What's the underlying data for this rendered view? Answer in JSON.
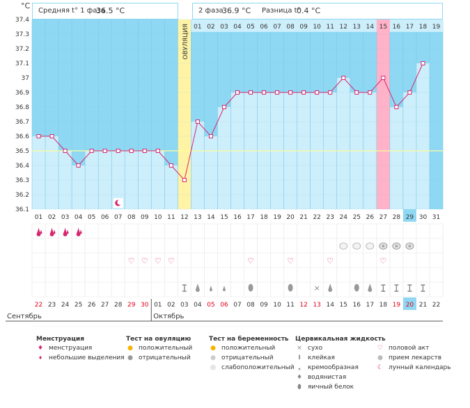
{
  "header": {
    "unit_label": "°C",
    "phase1_label": "Средняя t° 1 фаза",
    "phase1_value": "36.5 °C",
    "phase2_label": "2 фаза",
    "phase2_value": "36.9 °C",
    "diff_label": "Разница t°",
    "diff_value": "0.4 °C",
    "ovulation_label": "ОВУЛЯЦИЯ"
  },
  "colors": {
    "sky": "#8fd8f3",
    "bar": "#cdeefb",
    "grid": "#7cc7e5",
    "line": "#d6266f",
    "ovulation": "#fff3a6",
    "highlight": "#ffb2c8",
    "today": "#8fd8f3",
    "coverline": "#ffff99"
  },
  "chart_data": {
    "type": "line",
    "title": "Базальная температура",
    "ylabel": "°C",
    "ylim": [
      36.1,
      37.4
    ],
    "yticks": [
      "36.1",
      "36.2",
      "36.3",
      "36.4",
      "36.5",
      "36.6",
      "36.7",
      "36.8",
      "36.9",
      "37",
      "37.1",
      "37.2",
      "37.3",
      "37.4"
    ],
    "coverline": 36.5,
    "cycle_days": [
      "01",
      "02",
      "03",
      "04",
      "05",
      "06",
      "07",
      "08",
      "09",
      "10",
      "11",
      "12",
      "13",
      "14",
      "15",
      "16",
      "17",
      "18",
      "19",
      "20",
      "21",
      "22",
      "23",
      "24",
      "25",
      "26",
      "27",
      "28",
      "29",
      "30",
      "31"
    ],
    "temperatures": [
      36.6,
      36.6,
      36.5,
      36.4,
      36.5,
      36.5,
      36.5,
      36.5,
      36.5,
      36.5,
      36.4,
      36.3,
      36.7,
      36.6,
      36.8,
      36.9,
      36.9,
      36.9,
      36.9,
      36.9,
      36.9,
      36.9,
      36.9,
      37.0,
      36.9,
      36.9,
      37.0,
      36.8,
      36.9,
      37.1
    ],
    "ovulation_day": 12,
    "postovulation_days": [
      "01",
      "02",
      "03",
      "04",
      "05",
      "06",
      "07",
      "08",
      "09",
      "10",
      "11",
      "12",
      "13",
      "14",
      "15",
      "16",
      "17",
      "18",
      "19"
    ],
    "highlight_postovulation_day": 15,
    "today_day": 29,
    "calendar_dates": [
      "22",
      "23",
      "24",
      "25",
      "26",
      "27",
      "28",
      "29",
      "30",
      "01",
      "02",
      "03",
      "04",
      "05",
      "06",
      "07",
      "08",
      "09",
      "10",
      "11",
      "12",
      "13",
      "14",
      "15",
      "16",
      "17",
      "18",
      "19",
      "20",
      "21",
      "22"
    ],
    "weekend_indices": [
      0,
      7,
      8,
      13,
      14,
      20,
      21,
      27,
      28
    ],
    "months": [
      {
        "name": "Сентябрь",
        "start_index": 0
      },
      {
        "name": "Октябрь",
        "start_index": 9
      }
    ],
    "markers": {
      "menstruation": [
        1,
        2,
        3,
        4
      ],
      "light_bleeding": [],
      "pregnancy_negative": [
        24,
        25,
        26
      ],
      "pregnancy_weak": [
        27,
        28,
        29
      ],
      "intercourse": [
        8,
        9,
        10,
        11,
        17,
        20,
        23,
        27
      ],
      "cervical": [
        {
          "day": 12,
          "type": "sticky"
        },
        {
          "day": 13,
          "type": "watery"
        },
        {
          "day": 14,
          "type": "watery_small"
        },
        {
          "day": 15,
          "type": "watery_small"
        },
        {
          "day": 17,
          "type": "eggwhite"
        },
        {
          "day": 20,
          "type": "eggwhite"
        },
        {
          "day": 22,
          "type": "dry"
        },
        {
          "day": 23,
          "type": "watery"
        },
        {
          "day": 25,
          "type": "eggwhite"
        },
        {
          "day": 26,
          "type": "watery"
        },
        {
          "day": 27,
          "type": "sticky"
        },
        {
          "day": 28,
          "type": "sticky"
        },
        {
          "day": 29,
          "type": "sticky"
        },
        {
          "day": 30,
          "type": "sticky"
        }
      ],
      "moon": [
        7
      ]
    }
  },
  "legend": {
    "menstruation_title": "Менструация",
    "menstruation_items": [
      "менструация",
      "небольшие выделения"
    ],
    "ovulation_test_title": "Тест на овуляцию",
    "ovulation_test_items": [
      "положительный",
      "отрицательный"
    ],
    "pregnancy_test_title": "Тест на беременность",
    "pregnancy_test_items": [
      "положительный",
      "отрицательный",
      "слабоположительный"
    ],
    "cervical_title": "Цервикальная жидкость",
    "cervical_items": [
      "сухо",
      "клейкая",
      "кремообразная",
      "водянистая",
      "яичный белок"
    ],
    "other_items": [
      "половой акт",
      "прием лекарств",
      "лунный календарь"
    ]
  }
}
